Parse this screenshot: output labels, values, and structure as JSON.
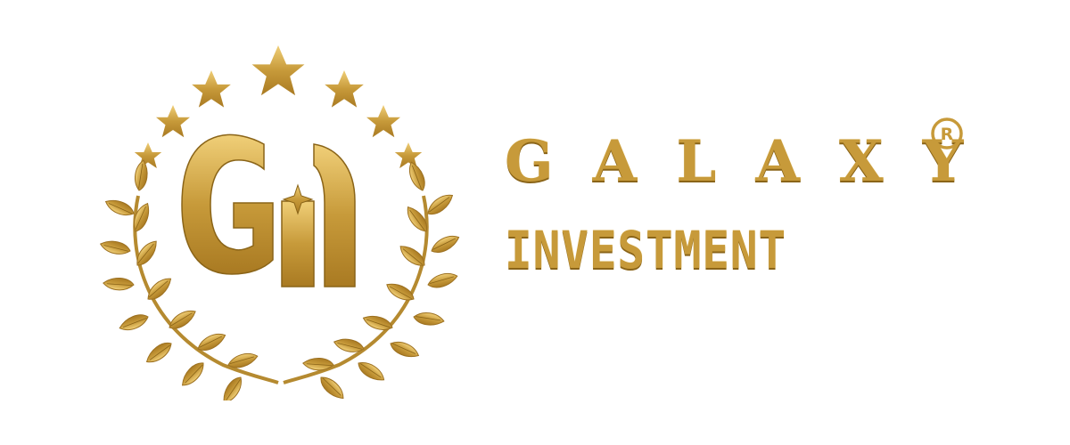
{
  "brand": {
    "name_line_1": "GALAXY",
    "name_line_2": "INVESTMENT",
    "registered_symbol": "®",
    "monogram": "GI"
  },
  "colors": {
    "gold": "#c79a3a",
    "gold_light": "#e8c56a",
    "gold_dark": "#8a6418",
    "background": "#ffffff"
  },
  "icons": [
    "star-icon",
    "laurel-wreath-icon",
    "sparkle-icon",
    "registered-icon"
  ]
}
